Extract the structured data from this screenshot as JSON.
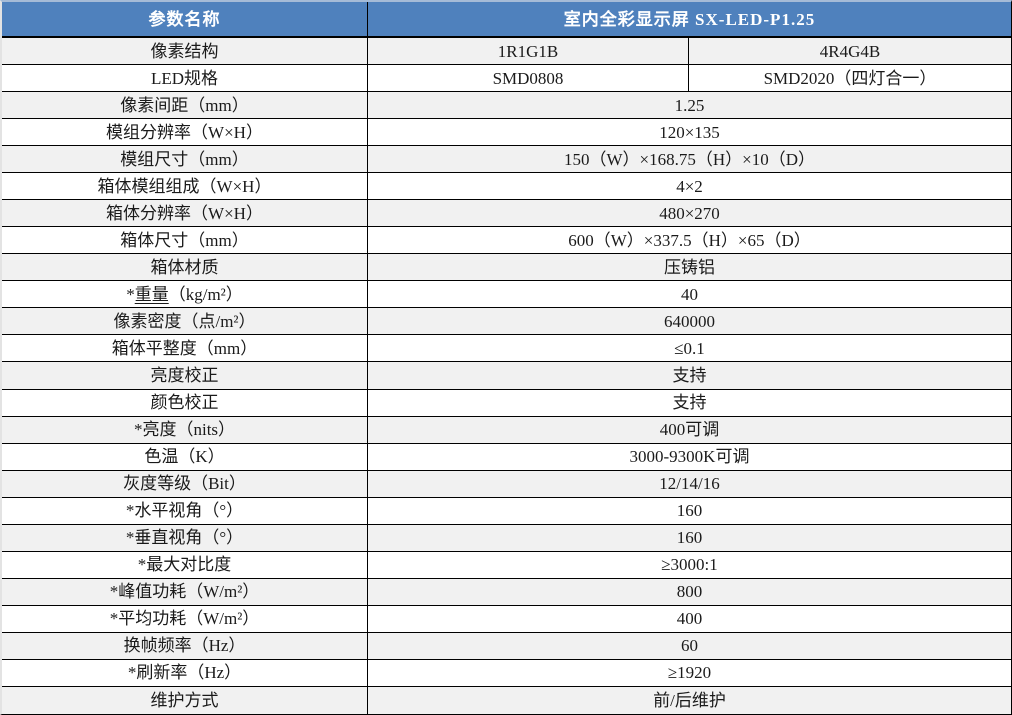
{
  "table": {
    "header": {
      "param_col_label": "参数名称",
      "product_title": "室内全彩显示屏 SX-LED-P1.25"
    },
    "split_rows": [
      {
        "label": "像素结构",
        "value1": "1R1G1B",
        "value2": "4R4G4B"
      },
      {
        "label": "LED规格",
        "value1": "SMD0808",
        "value2": "SMD2020（四灯合一）"
      }
    ],
    "rows": [
      {
        "label": "像素间距（mm）",
        "value": "1.25"
      },
      {
        "label": "模组分辨率（W×H）",
        "value": "120×135"
      },
      {
        "label": "模组尺寸（mm）",
        "value": "150（W）×168.75（H）×10（D）"
      },
      {
        "label": "箱体模组组成（W×H）",
        "value": "4×2"
      },
      {
        "label": "箱体分辨率（W×H）",
        "value": "480×270"
      },
      {
        "label": "箱体尺寸（mm）",
        "value": "600（W）×337.5（H）×65（D）"
      },
      {
        "label": "箱体材质",
        "value": "压铸铝"
      },
      {
        "label": "*重量（kg/m²）",
        "prefix": "*",
        "underline_part": "重量",
        "suffix": "（kg/m²）",
        "value": "40"
      },
      {
        "label": "像素密度（点/m²）",
        "value": "640000"
      },
      {
        "label": "箱体平整度（mm）",
        "value": "≤0.1"
      },
      {
        "label": "亮度校正",
        "value": "支持"
      },
      {
        "label": "颜色校正",
        "value": "支持"
      },
      {
        "label": "*亮度（nits）",
        "value": "400可调"
      },
      {
        "label": "色温（K）",
        "value": "3000-9300K可调"
      },
      {
        "label": "灰度等级（Bit）",
        "value": "12/14/16"
      },
      {
        "label": "*水平视角（°）",
        "value": "160"
      },
      {
        "label": "*垂直视角（°）",
        "value": "160"
      },
      {
        "label": "*最大对比度",
        "value": "≥3000:1"
      },
      {
        "label": "*峰值功耗（W/m²）",
        "value": "800"
      },
      {
        "label": "*平均功耗（W/m²）",
        "value": "400"
      },
      {
        "label": "换帧频率（Hz）",
        "value": "60"
      },
      {
        "label": "*刷新率（Hz）",
        "value": "≥1920"
      },
      {
        "label": "维护方式",
        "value": "前/后维护"
      }
    ]
  },
  "colors": {
    "header_bg": "#4f81bd",
    "header_text": "#ffffff",
    "stripe_bg": "#f1f1f1",
    "row_bg": "#ffffff",
    "border": "#000000",
    "top_border": "#a5bbd7"
  }
}
